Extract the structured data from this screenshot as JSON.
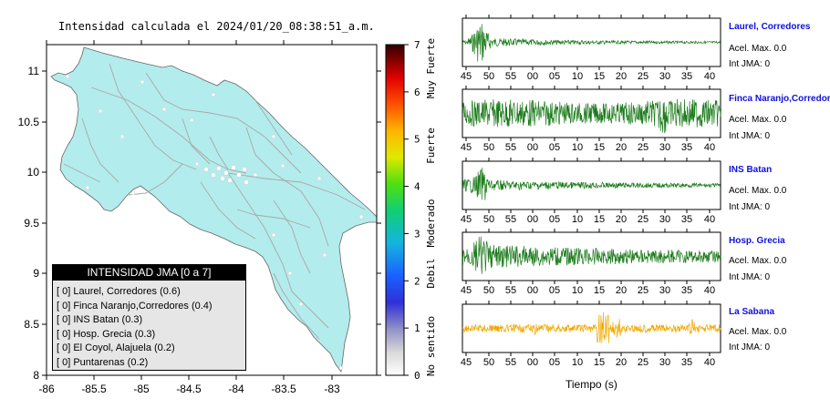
{
  "map": {
    "title": "Intensidad calculada el 2024/01/20_08:38:51_a.m.",
    "x_ticks": [
      "-86",
      "-85.5",
      "-85",
      "-84.5",
      "-84",
      "-83.5",
      "-83"
    ],
    "y_ticks": [
      "11",
      "10.5",
      "10",
      "9.5",
      "9",
      "8.5",
      "8"
    ],
    "land_color": "#b3ecec",
    "legend": {
      "header": "INTENSIDAD JMA [0 a 7]",
      "items": [
        "[ 0]  Laurel, Corredores (0.6)",
        "[ 0]  Finca Naranjo,Corredores (0.4)",
        "[ 0]  INS Batan (0.3)",
        "[ 0]  Hosp. Grecia (0.3)",
        "[ 0]  El Coyol, Alajuela (0.2)",
        "[ 0]  Puntarenas (0.2)"
      ]
    }
  },
  "colorbar": {
    "ticks": [
      "7",
      "6",
      "5",
      "4",
      "3",
      "2",
      "1",
      "0"
    ],
    "labels": [
      "Muy Fuerte",
      "Fuerte",
      "Moderado",
      "Debil",
      "No sentido"
    ]
  },
  "waveforms": {
    "x_ticks": [
      "45",
      "50",
      "55",
      "00",
      "05",
      "10",
      "15",
      "20",
      "25",
      "30",
      "35",
      "40"
    ],
    "xlabel": "Tiempo (s)",
    "stations": [
      {
        "name": "Laurel, Corredores",
        "acel": "Acel. Max. 0.0",
        "jma": "Int JMA: 0",
        "color": "#1a7a1a"
      },
      {
        "name": "Finca Naranjo,Corredores",
        "acel": "Acel. Max. 0.0",
        "jma": "Int JMA: 0",
        "color": "#1a7a1a"
      },
      {
        "name": "INS Batan",
        "acel": "Acel. Max. 0.0",
        "jma": "Int JMA: 0",
        "color": "#1a7a1a"
      },
      {
        "name": "Hosp. Grecia",
        "acel": "Acel. Max. 0.0",
        "jma": "Int JMA: 0",
        "color": "#1a7a1a"
      },
      {
        "name": "La Sabana",
        "acel": "Acel. Max. 0.0",
        "jma": "Int JMA: 0",
        "color": "#f0a800"
      }
    ]
  }
}
